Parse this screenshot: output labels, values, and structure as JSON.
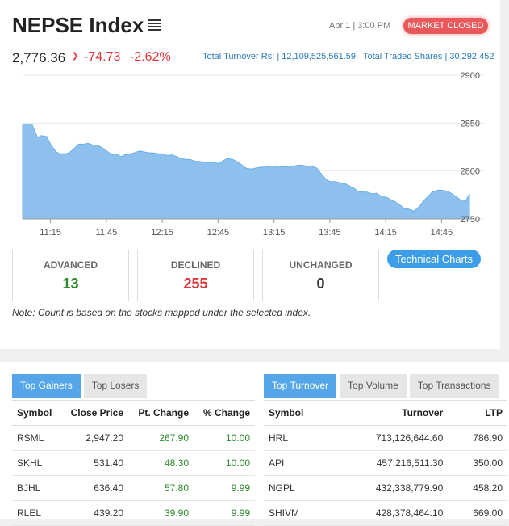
{
  "header": {
    "title": "NEPSE Index",
    "date_time": "Apr 1 | 3:00 PM",
    "market_status": "MARKET CLOSED",
    "index_value": "2,776.36",
    "point_change": "-74.73",
    "percent_change": "-2.62%",
    "turnover_label": "Total Turnover Rs: | 12,109,525,561.59",
    "shares_label": "Total Traded Shares | 30,292,452"
  },
  "chart_data": {
    "type": "area",
    "title": "",
    "xlabel": "",
    "ylabel": "",
    "x_ticks": [
      "11:15",
      "11:45",
      "12:15",
      "12:45",
      "13:15",
      "13:45",
      "14:15",
      "14:45"
    ],
    "y_ticks": [
      2750,
      2800,
      2850,
      2900
    ],
    "ylim": [
      2750,
      2900
    ],
    "grid": true,
    "color": "#8dc0ec",
    "series": [
      {
        "x": [
          "11:00",
          "11:03",
          "11:05",
          "11:08",
          "11:10",
          "11:13",
          "11:15",
          "11:18",
          "11:20",
          "11:23",
          "11:25",
          "11:28",
          "11:30",
          "11:33",
          "11:35",
          "11:38",
          "11:40",
          "11:43",
          "11:45",
          "11:48",
          "11:50",
          "11:53",
          "11:55",
          "11:58",
          "12:00",
          "12:03",
          "12:05",
          "12:08",
          "12:10",
          "12:13",
          "12:15",
          "12:18",
          "12:20",
          "12:23",
          "12:25",
          "12:28",
          "12:30",
          "12:33",
          "12:35",
          "12:38",
          "12:40",
          "12:43",
          "12:45",
          "12:48",
          "12:50",
          "12:53",
          "12:55",
          "12:58",
          "13:00",
          "13:03",
          "13:05",
          "13:08",
          "13:10",
          "13:13",
          "13:15",
          "13:18",
          "13:20",
          "13:23",
          "13:25",
          "13:28",
          "13:30",
          "13:33",
          "13:35",
          "13:38",
          "13:40",
          "13:43",
          "13:45",
          "13:48",
          "13:50",
          "13:53",
          "13:55",
          "13:58",
          "14:00",
          "14:03",
          "14:05",
          "14:08",
          "14:10",
          "14:13",
          "14:15",
          "14:18",
          "14:20",
          "14:23",
          "14:25",
          "14:28",
          "14:30",
          "14:33",
          "14:35",
          "14:38",
          "14:40",
          "14:43",
          "14:45",
          "14:48",
          "14:50",
          "14:53",
          "14:55",
          "14:58",
          "15:00"
        ],
        "values": [
          2849,
          2849,
          2849,
          2835,
          2837,
          2836,
          2828,
          2820,
          2818,
          2818,
          2819,
          2824,
          2828,
          2828,
          2829,
          2827,
          2827,
          2824,
          2821,
          2817,
          2818,
          2815,
          2817,
          2818,
          2819,
          2821,
          2820,
          2819,
          2819,
          2818,
          2818,
          2816,
          2817,
          2815,
          2813,
          2812,
          2812,
          2810,
          2810,
          2809,
          2809,
          2809,
          2808,
          2811,
          2813,
          2812,
          2810,
          2806,
          2803,
          2802,
          2803,
          2804,
          2804,
          2805,
          2805,
          2804,
          2805,
          2804,
          2805,
          2806,
          2806,
          2805,
          2805,
          2803,
          2798,
          2791,
          2789,
          2789,
          2788,
          2787,
          2785,
          2782,
          2779,
          2778,
          2778,
          2776,
          2777,
          2773,
          2773,
          2770,
          2768,
          2764,
          2761,
          2760,
          2758,
          2763,
          2768,
          2774,
          2778,
          2780,
          2780,
          2779,
          2777,
          2773,
          2770,
          2769,
          2776
        ]
      }
    ]
  },
  "stats": {
    "advanced_label": "ADVANCED",
    "advanced": "13",
    "declined_label": "DECLINED",
    "declined": "255",
    "unchanged_label": "UNCHANGED",
    "unchanged": "0",
    "technical_charts": "Technical Charts",
    "note": "Note: Count is based on the stocks mapped under the selected index.",
    "advanced_color": "#2d8a2d",
    "declined_color": "#e0373a"
  },
  "gainers": {
    "tabs": [
      "Top Gainers",
      "Top Losers"
    ],
    "columns": [
      "Symbol",
      "Close Price",
      "Pt. Change",
      "% Change"
    ],
    "rows": [
      [
        "RSML",
        "2,947.20",
        "267.90",
        "10.00"
      ],
      [
        "SKHL",
        "531.40",
        "48.30",
        "10.00"
      ],
      [
        "BJHL",
        "636.40",
        "57.80",
        "9.99"
      ],
      [
        "RLEL",
        "439.20",
        "39.90",
        "9.99"
      ]
    ]
  },
  "turnover": {
    "tabs": [
      "Top Turnover",
      "Top Volume",
      "Top Transactions"
    ],
    "columns": [
      "Symbol",
      "Turnover",
      "LTP"
    ],
    "rows": [
      [
        "HRL",
        "713,126,644.60",
        "786.90"
      ],
      [
        "API",
        "457,216,511.30",
        "350.00"
      ],
      [
        "NGPL",
        "432,338,779.90",
        "458.20"
      ],
      [
        "SHIVM",
        "428,378,464.10",
        "669.00"
      ]
    ]
  }
}
